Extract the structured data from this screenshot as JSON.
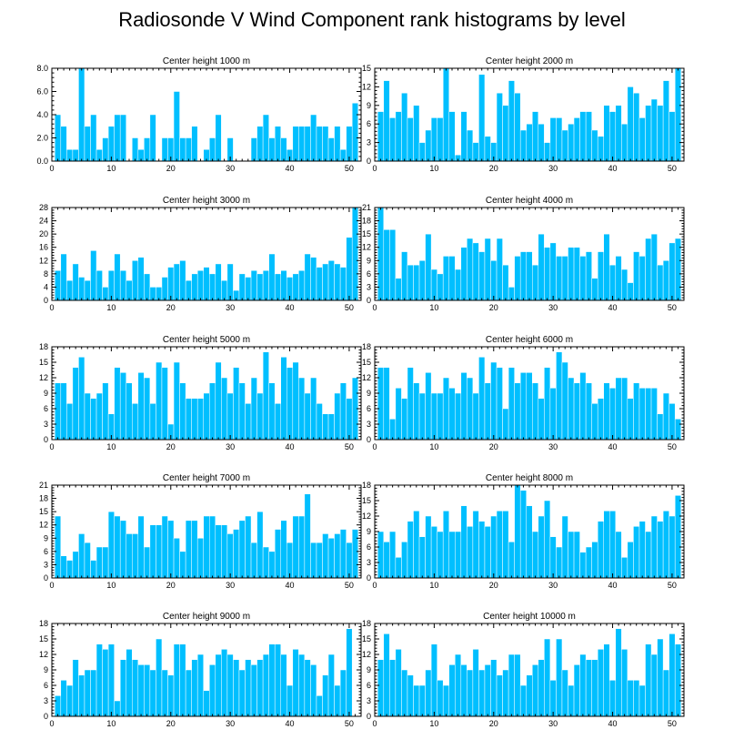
{
  "figure": {
    "title": "Radiosonde V Wind Component rank histograms by level"
  },
  "colors": {
    "bar": "#00bfff",
    "bar_edge": "#ffffff",
    "axis": "#000000"
  },
  "chart_data": [
    {
      "type": "bar",
      "title": "Center height 1000 m",
      "xlim": [
        0,
        52
      ],
      "ylim": [
        0,
        8
      ],
      "xticks": [
        0,
        10,
        20,
        30,
        40,
        50
      ],
      "yticks": [
        0,
        2,
        4,
        6,
        8
      ],
      "yticklabels": [
        "0.0",
        "2.0",
        "4.0",
        "6.0",
        "8.0"
      ],
      "x": [
        1,
        2,
        3,
        4,
        5,
        6,
        7,
        8,
        9,
        10,
        11,
        12,
        13,
        14,
        15,
        16,
        17,
        18,
        19,
        20,
        21,
        22,
        23,
        24,
        25,
        26,
        27,
        28,
        29,
        30,
        31,
        32,
        33,
        34,
        35,
        36,
        37,
        38,
        39,
        40,
        41,
        42,
        43,
        44,
        45,
        46,
        47,
        48,
        49,
        50,
        51
      ],
      "values": [
        4,
        3,
        1,
        1,
        8,
        3,
        4,
        1,
        2,
        3,
        4,
        4,
        0,
        2,
        1,
        2,
        4,
        0,
        2,
        2,
        6,
        2,
        2,
        3,
        0,
        1,
        2,
        4,
        0,
        2,
        0,
        0,
        0,
        2,
        3,
        4,
        2,
        3,
        2,
        1,
        3,
        3,
        3,
        4,
        3,
        3,
        2,
        3,
        1,
        3,
        5
      ]
    },
    {
      "type": "bar",
      "title": "Center height 2000 m",
      "xlim": [
        0,
        52
      ],
      "ylim": [
        0,
        15
      ],
      "xticks": [
        0,
        10,
        20,
        30,
        40,
        50
      ],
      "yticks": [
        0,
        3,
        6,
        9,
        12,
        15
      ],
      "yticklabels": [
        "0",
        "3",
        "6",
        "9",
        "12",
        "15"
      ],
      "x": [
        1,
        2,
        3,
        4,
        5,
        6,
        7,
        8,
        9,
        10,
        11,
        12,
        13,
        14,
        15,
        16,
        17,
        18,
        19,
        20,
        21,
        22,
        23,
        24,
        25,
        26,
        27,
        28,
        29,
        30,
        31,
        32,
        33,
        34,
        35,
        36,
        37,
        38,
        39,
        40,
        41,
        42,
        43,
        44,
        45,
        46,
        47,
        48,
        49,
        50,
        51
      ],
      "values": [
        8,
        13,
        7,
        8,
        11,
        7,
        9,
        3,
        5,
        7,
        7,
        15,
        8,
        1,
        8,
        5,
        3,
        14,
        4,
        3,
        11,
        9,
        13,
        11,
        5,
        6,
        8,
        6,
        3,
        7,
        7,
        5,
        6,
        7,
        8,
        8,
        5,
        4,
        9,
        8,
        9,
        6,
        12,
        11,
        7,
        9,
        10,
        9,
        13,
        8,
        15
      ]
    },
    {
      "type": "bar",
      "title": "Center height 3000 m",
      "xlim": [
        0,
        52
      ],
      "ylim": [
        0,
        28
      ],
      "xticks": [
        0,
        10,
        20,
        30,
        40,
        50
      ],
      "yticks": [
        0,
        4,
        8,
        12,
        16,
        20,
        24,
        28
      ],
      "yticklabels": [
        "0",
        "4",
        "8",
        "12",
        "16",
        "20",
        "24",
        "28"
      ],
      "x": [
        1,
        2,
        3,
        4,
        5,
        6,
        7,
        8,
        9,
        10,
        11,
        12,
        13,
        14,
        15,
        16,
        17,
        18,
        19,
        20,
        21,
        22,
        23,
        24,
        25,
        26,
        27,
        28,
        29,
        30,
        31,
        32,
        33,
        34,
        35,
        36,
        37,
        38,
        39,
        40,
        41,
        42,
        43,
        44,
        45,
        46,
        47,
        48,
        49,
        50,
        51
      ],
      "values": [
        9,
        14,
        6,
        11,
        7,
        6,
        15,
        9,
        4,
        9,
        14,
        9,
        6,
        12,
        13,
        8,
        4,
        4,
        7,
        10,
        11,
        12,
        6,
        8,
        9,
        10,
        8,
        11,
        6,
        11,
        3,
        8,
        7,
        9,
        8,
        9,
        14,
        8,
        9,
        7,
        8,
        9,
        14,
        13,
        10,
        11,
        12,
        11,
        10,
        19,
        28
      ]
    },
    {
      "type": "bar",
      "title": "Center height 4000 m",
      "xlim": [
        0,
        52
      ],
      "ylim": [
        0,
        21
      ],
      "xticks": [
        0,
        10,
        20,
        30,
        40,
        50
      ],
      "yticks": [
        0,
        3,
        6,
        9,
        12,
        15,
        18,
        21
      ],
      "yticklabels": [
        "0",
        "3",
        "6",
        "9",
        "12",
        "15",
        "18",
        "21"
      ],
      "x": [
        1,
        2,
        3,
        4,
        5,
        6,
        7,
        8,
        9,
        10,
        11,
        12,
        13,
        14,
        15,
        16,
        17,
        18,
        19,
        20,
        21,
        22,
        23,
        24,
        25,
        26,
        27,
        28,
        29,
        30,
        31,
        32,
        33,
        34,
        35,
        36,
        37,
        38,
        39,
        40,
        41,
        42,
        43,
        44,
        45,
        46,
        47,
        48,
        49,
        50,
        51
      ],
      "values": [
        21,
        16,
        16,
        5,
        11,
        8,
        8,
        9,
        15,
        7,
        6,
        10,
        10,
        7,
        12,
        14,
        13,
        11,
        14,
        9,
        14,
        8,
        3,
        10,
        11,
        11,
        8,
        15,
        12,
        13,
        10,
        10,
        12,
        12,
        10,
        11,
        5,
        11,
        15,
        8,
        10,
        7,
        4,
        11,
        10,
        14,
        15,
        8,
        9,
        13,
        14
      ]
    },
    {
      "type": "bar",
      "title": "Center height 5000 m",
      "xlim": [
        0,
        52
      ],
      "ylim": [
        0,
        18
      ],
      "xticks": [
        0,
        10,
        20,
        30,
        40,
        50
      ],
      "yticks": [
        0,
        3,
        6,
        9,
        12,
        15,
        18
      ],
      "yticklabels": [
        "0",
        "3",
        "6",
        "9",
        "12",
        "15",
        "18"
      ],
      "x": [
        1,
        2,
        3,
        4,
        5,
        6,
        7,
        8,
        9,
        10,
        11,
        12,
        13,
        14,
        15,
        16,
        17,
        18,
        19,
        20,
        21,
        22,
        23,
        24,
        25,
        26,
        27,
        28,
        29,
        30,
        31,
        32,
        33,
        34,
        35,
        36,
        37,
        38,
        39,
        40,
        41,
        42,
        43,
        44,
        45,
        46,
        47,
        48,
        49,
        50,
        51
      ],
      "values": [
        11,
        11,
        7,
        14,
        16,
        9,
        8,
        9,
        11,
        5,
        14,
        13,
        11,
        7,
        13,
        12,
        7,
        15,
        14,
        3,
        15,
        11,
        8,
        8,
        8,
        9,
        11,
        15,
        12,
        9,
        14,
        11,
        7,
        12,
        9,
        17,
        11,
        7,
        16,
        14,
        15,
        12,
        9,
        12,
        7,
        5,
        5,
        9,
        11,
        8,
        12
      ]
    },
    {
      "type": "bar",
      "title": "Center height 6000 m",
      "xlim": [
        0,
        52
      ],
      "ylim": [
        0,
        18
      ],
      "xticks": [
        0,
        10,
        20,
        30,
        40,
        50
      ],
      "yticks": [
        0,
        3,
        6,
        9,
        12,
        15,
        18
      ],
      "yticklabels": [
        "0",
        "3",
        "6",
        "9",
        "12",
        "15",
        "18"
      ],
      "x": [
        1,
        2,
        3,
        4,
        5,
        6,
        7,
        8,
        9,
        10,
        11,
        12,
        13,
        14,
        15,
        16,
        17,
        18,
        19,
        20,
        21,
        22,
        23,
        24,
        25,
        26,
        27,
        28,
        29,
        30,
        31,
        32,
        33,
        34,
        35,
        36,
        37,
        38,
        39,
        40,
        41,
        42,
        43,
        44,
        45,
        46,
        47,
        48,
        49,
        50,
        51
      ],
      "values": [
        14,
        14,
        4,
        10,
        8,
        14,
        11,
        9,
        13,
        9,
        9,
        12,
        10,
        9,
        13,
        12,
        9,
        16,
        11,
        15,
        14,
        6,
        14,
        11,
        13,
        13,
        11,
        8,
        14,
        10,
        17,
        15,
        12,
        11,
        13,
        11,
        7,
        8,
        11,
        10,
        12,
        12,
        8,
        11,
        10,
        10,
        10,
        5,
        9,
        7,
        4
      ]
    },
    {
      "type": "bar",
      "title": "Center height 7000 m",
      "xlim": [
        0,
        52
      ],
      "ylim": [
        0,
        21
      ],
      "xticks": [
        0,
        10,
        20,
        30,
        40,
        50
      ],
      "yticks": [
        0,
        3,
        6,
        9,
        12,
        15,
        18,
        21
      ],
      "yticklabels": [
        "0",
        "3",
        "6",
        "9",
        "12",
        "15",
        "18",
        "21"
      ],
      "x": [
        1,
        2,
        3,
        4,
        5,
        6,
        7,
        8,
        9,
        10,
        11,
        12,
        13,
        14,
        15,
        16,
        17,
        18,
        19,
        20,
        21,
        22,
        23,
        24,
        25,
        26,
        27,
        28,
        29,
        30,
        31,
        32,
        33,
        34,
        35,
        36,
        37,
        38,
        39,
        40,
        41,
        42,
        43,
        44,
        45,
        46,
        47,
        48,
        49,
        50,
        51
      ],
      "values": [
        14,
        5,
        4,
        6,
        10,
        8,
        4,
        7,
        7,
        15,
        14,
        13,
        10,
        10,
        14,
        7,
        12,
        12,
        14,
        13,
        9,
        6,
        13,
        13,
        9,
        14,
        14,
        12,
        12,
        10,
        11,
        13,
        14,
        8,
        15,
        7,
        6,
        11,
        13,
        8,
        14,
        14,
        19,
        8,
        8,
        10,
        9,
        10,
        11,
        8,
        11
      ]
    },
    {
      "type": "bar",
      "title": "Center height 8000 m",
      "xlim": [
        0,
        52
      ],
      "ylim": [
        0,
        18
      ],
      "xticks": [
        0,
        10,
        20,
        30,
        40,
        50
      ],
      "yticks": [
        0,
        3,
        6,
        9,
        12,
        15,
        18
      ],
      "yticklabels": [
        "0",
        "3",
        "6",
        "9",
        "12",
        "15",
        "18"
      ],
      "x": [
        1,
        2,
        3,
        4,
        5,
        6,
        7,
        8,
        9,
        10,
        11,
        12,
        13,
        14,
        15,
        16,
        17,
        18,
        19,
        20,
        21,
        22,
        23,
        24,
        25,
        26,
        27,
        28,
        29,
        30,
        31,
        32,
        33,
        34,
        35,
        36,
        37,
        38,
        39,
        40,
        41,
        42,
        43,
        44,
        45,
        46,
        47,
        48,
        49,
        50,
        51
      ],
      "values": [
        9,
        7,
        9,
        4,
        7,
        11,
        13,
        8,
        12,
        10,
        9,
        13,
        9,
        9,
        14,
        10,
        13,
        11,
        10,
        12,
        13,
        13,
        7,
        18,
        17,
        14,
        9,
        12,
        15,
        8,
        6,
        12,
        9,
        9,
        5,
        6,
        7,
        11,
        13,
        13,
        9,
        4,
        7,
        10,
        11,
        9,
        12,
        11,
        13,
        12,
        16
      ]
    },
    {
      "type": "bar",
      "title": "Center height 9000 m",
      "xlim": [
        0,
        52
      ],
      "ylim": [
        0,
        18
      ],
      "xticks": [
        0,
        10,
        20,
        30,
        40,
        50
      ],
      "yticks": [
        0,
        3,
        6,
        9,
        12,
        15,
        18
      ],
      "yticklabels": [
        "0",
        "3",
        "6",
        "9",
        "12",
        "15",
        "18"
      ],
      "x": [
        1,
        2,
        3,
        4,
        5,
        6,
        7,
        8,
        9,
        10,
        11,
        12,
        13,
        14,
        15,
        16,
        17,
        18,
        19,
        20,
        21,
        22,
        23,
        24,
        25,
        26,
        27,
        28,
        29,
        30,
        31,
        32,
        33,
        34,
        35,
        36,
        37,
        38,
        39,
        40,
        41,
        42,
        43,
        44,
        45,
        46,
        47,
        48,
        49,
        50,
        51
      ],
      "values": [
        4,
        7,
        6,
        11,
        8,
        9,
        9,
        14,
        13,
        14,
        3,
        11,
        13,
        11,
        10,
        10,
        9,
        15,
        9,
        8,
        14,
        14,
        9,
        11,
        12,
        5,
        10,
        12,
        13,
        12,
        11,
        9,
        11,
        10,
        11,
        12,
        14,
        14,
        12,
        6,
        13,
        12,
        11,
        10,
        4,
        8,
        12,
        6,
        9,
        17,
        0
      ]
    },
    {
      "type": "bar",
      "title": "Center height 10000 m",
      "xlim": [
        0,
        52
      ],
      "ylim": [
        0,
        18
      ],
      "xticks": [
        0,
        10,
        20,
        30,
        40,
        50
      ],
      "yticks": [
        0,
        3,
        6,
        9,
        12,
        15,
        18
      ],
      "yticklabels": [
        "0",
        "3",
        "6",
        "9",
        "12",
        "15",
        "18"
      ],
      "x": [
        1,
        2,
        3,
        4,
        5,
        6,
        7,
        8,
        9,
        10,
        11,
        12,
        13,
        14,
        15,
        16,
        17,
        18,
        19,
        20,
        21,
        22,
        23,
        24,
        25,
        26,
        27,
        28,
        29,
        30,
        31,
        32,
        33,
        34,
        35,
        36,
        37,
        38,
        39,
        40,
        41,
        42,
        43,
        44,
        45,
        46,
        47,
        48,
        49,
        50,
        51
      ],
      "values": [
        11,
        16,
        11,
        13,
        9,
        8,
        6,
        6,
        9,
        14,
        7,
        6,
        10,
        12,
        10,
        9,
        13,
        9,
        10,
        11,
        8,
        9,
        12,
        12,
        6,
        8,
        10,
        11,
        15,
        7,
        15,
        9,
        6,
        10,
        12,
        11,
        11,
        13,
        14,
        7,
        17,
        13,
        7,
        7,
        6,
        14,
        12,
        15,
        9,
        16,
        14
      ]
    }
  ]
}
